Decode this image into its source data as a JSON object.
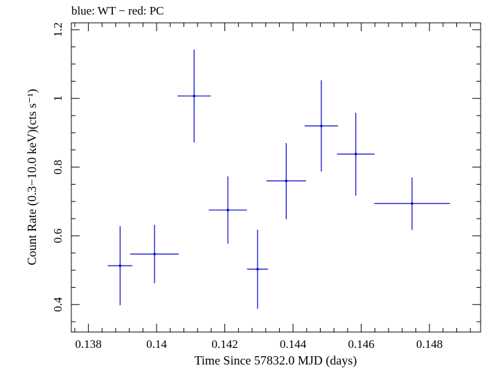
{
  "chart_data": {
    "type": "scatter",
    "title": "blue: WT − red: PC",
    "xlabel": "Time Since 57832.0 MJD (days)",
    "ylabel": "Count Rate (0.3−10.0 keV)(cts s⁻¹)",
    "xlim": [
      0.1375,
      0.1495
    ],
    "ylim": [
      0.32,
      1.22
    ],
    "xticks": [
      0.138,
      0.14,
      0.142,
      0.144,
      0.146,
      0.148
    ],
    "xtick_labels": [
      "0.138",
      "0.14",
      "0.142",
      "0.144",
      "0.146",
      "0.148"
    ],
    "yticks": [
      0.4,
      0.6,
      0.8,
      1.0,
      1.2
    ],
    "ytick_labels": [
      "0.4",
      "0.6",
      "0.8",
      "1",
      "1.2"
    ],
    "grid": false,
    "series": [
      {
        "color": "#0000cc",
        "points": [
          {
            "x": 0.13893,
            "y": 0.513,
            "xerr": 0.00036,
            "ylo": 0.398,
            "yhi": 0.628
          },
          {
            "x": 0.13994,
            "y": 0.547,
            "xerr": 0.00071,
            "ylo": 0.462,
            "yhi": 0.632
          },
          {
            "x": 0.1411,
            "y": 1.007,
            "xerr": 0.00049,
            "ylo": 0.872,
            "yhi": 1.142
          },
          {
            "x": 0.14209,
            "y": 0.675,
            "xerr": 0.00056,
            "ylo": 0.577,
            "yhi": 0.773
          },
          {
            "x": 0.14296,
            "y": 0.503,
            "xerr": 0.00031,
            "ylo": 0.388,
            "yhi": 0.618
          },
          {
            "x": 0.1438,
            "y": 0.76,
            "xerr": 0.00058,
            "ylo": 0.648,
            "yhi": 0.87
          },
          {
            "x": 0.14483,
            "y": 0.92,
            "xerr": 0.00049,
            "ylo": 0.787,
            "yhi": 1.053
          },
          {
            "x": 0.14584,
            "y": 0.838,
            "xerr": 0.00055,
            "ylo": 0.717,
            "yhi": 0.958
          },
          {
            "x": 0.14749,
            "y": 0.694,
            "xerr": 0.00111,
            "ylo": 0.617,
            "yhi": 0.77
          }
        ]
      }
    ]
  }
}
